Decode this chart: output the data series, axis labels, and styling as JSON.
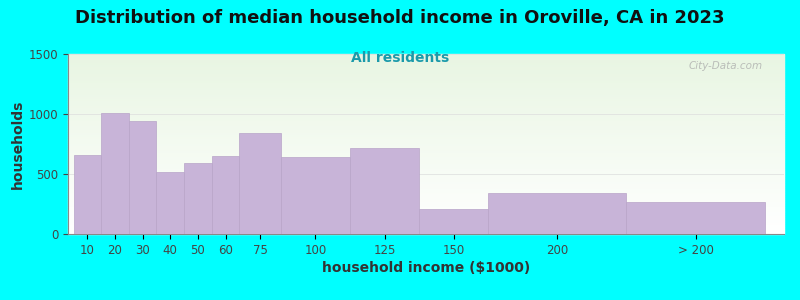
{
  "title": "Distribution of median household income in Oroville, CA in 2023",
  "subtitle": "All residents",
  "xlabel": "household income ($1000)",
  "ylabel": "households",
  "background_color": "#00FFFF",
  "plot_bg_gradient_top": "#e8f5e2",
  "plot_bg_gradient_bottom": "#ffffff",
  "bar_color": "#c8b4d8",
  "bar_edge_color": "#b8a4c8",
  "categories": [
    "10",
    "20",
    "30",
    "40",
    "50",
    "60",
    "75",
    "100",
    "125",
    "150",
    "200",
    "> 200"
  ],
  "values": [
    660,
    1010,
    940,
    520,
    590,
    650,
    840,
    640,
    720,
    205,
    340,
    270
  ],
  "bar_widths": [
    10,
    10,
    10,
    10,
    10,
    10,
    15,
    25,
    25,
    25,
    50,
    50
  ],
  "bar_lefts": [
    5,
    15,
    25,
    35,
    45,
    55,
    65,
    80,
    105,
    130,
    155,
    205
  ],
  "ylim": [
    0,
    1500
  ],
  "yticks": [
    0,
    500,
    1000,
    1500
  ],
  "xlim_left": 3,
  "xlim_right": 262,
  "title_fontsize": 13,
  "subtitle_fontsize": 10,
  "axis_label_fontsize": 10,
  "tick_fontsize": 8.5,
  "watermark": "City-Data.com"
}
